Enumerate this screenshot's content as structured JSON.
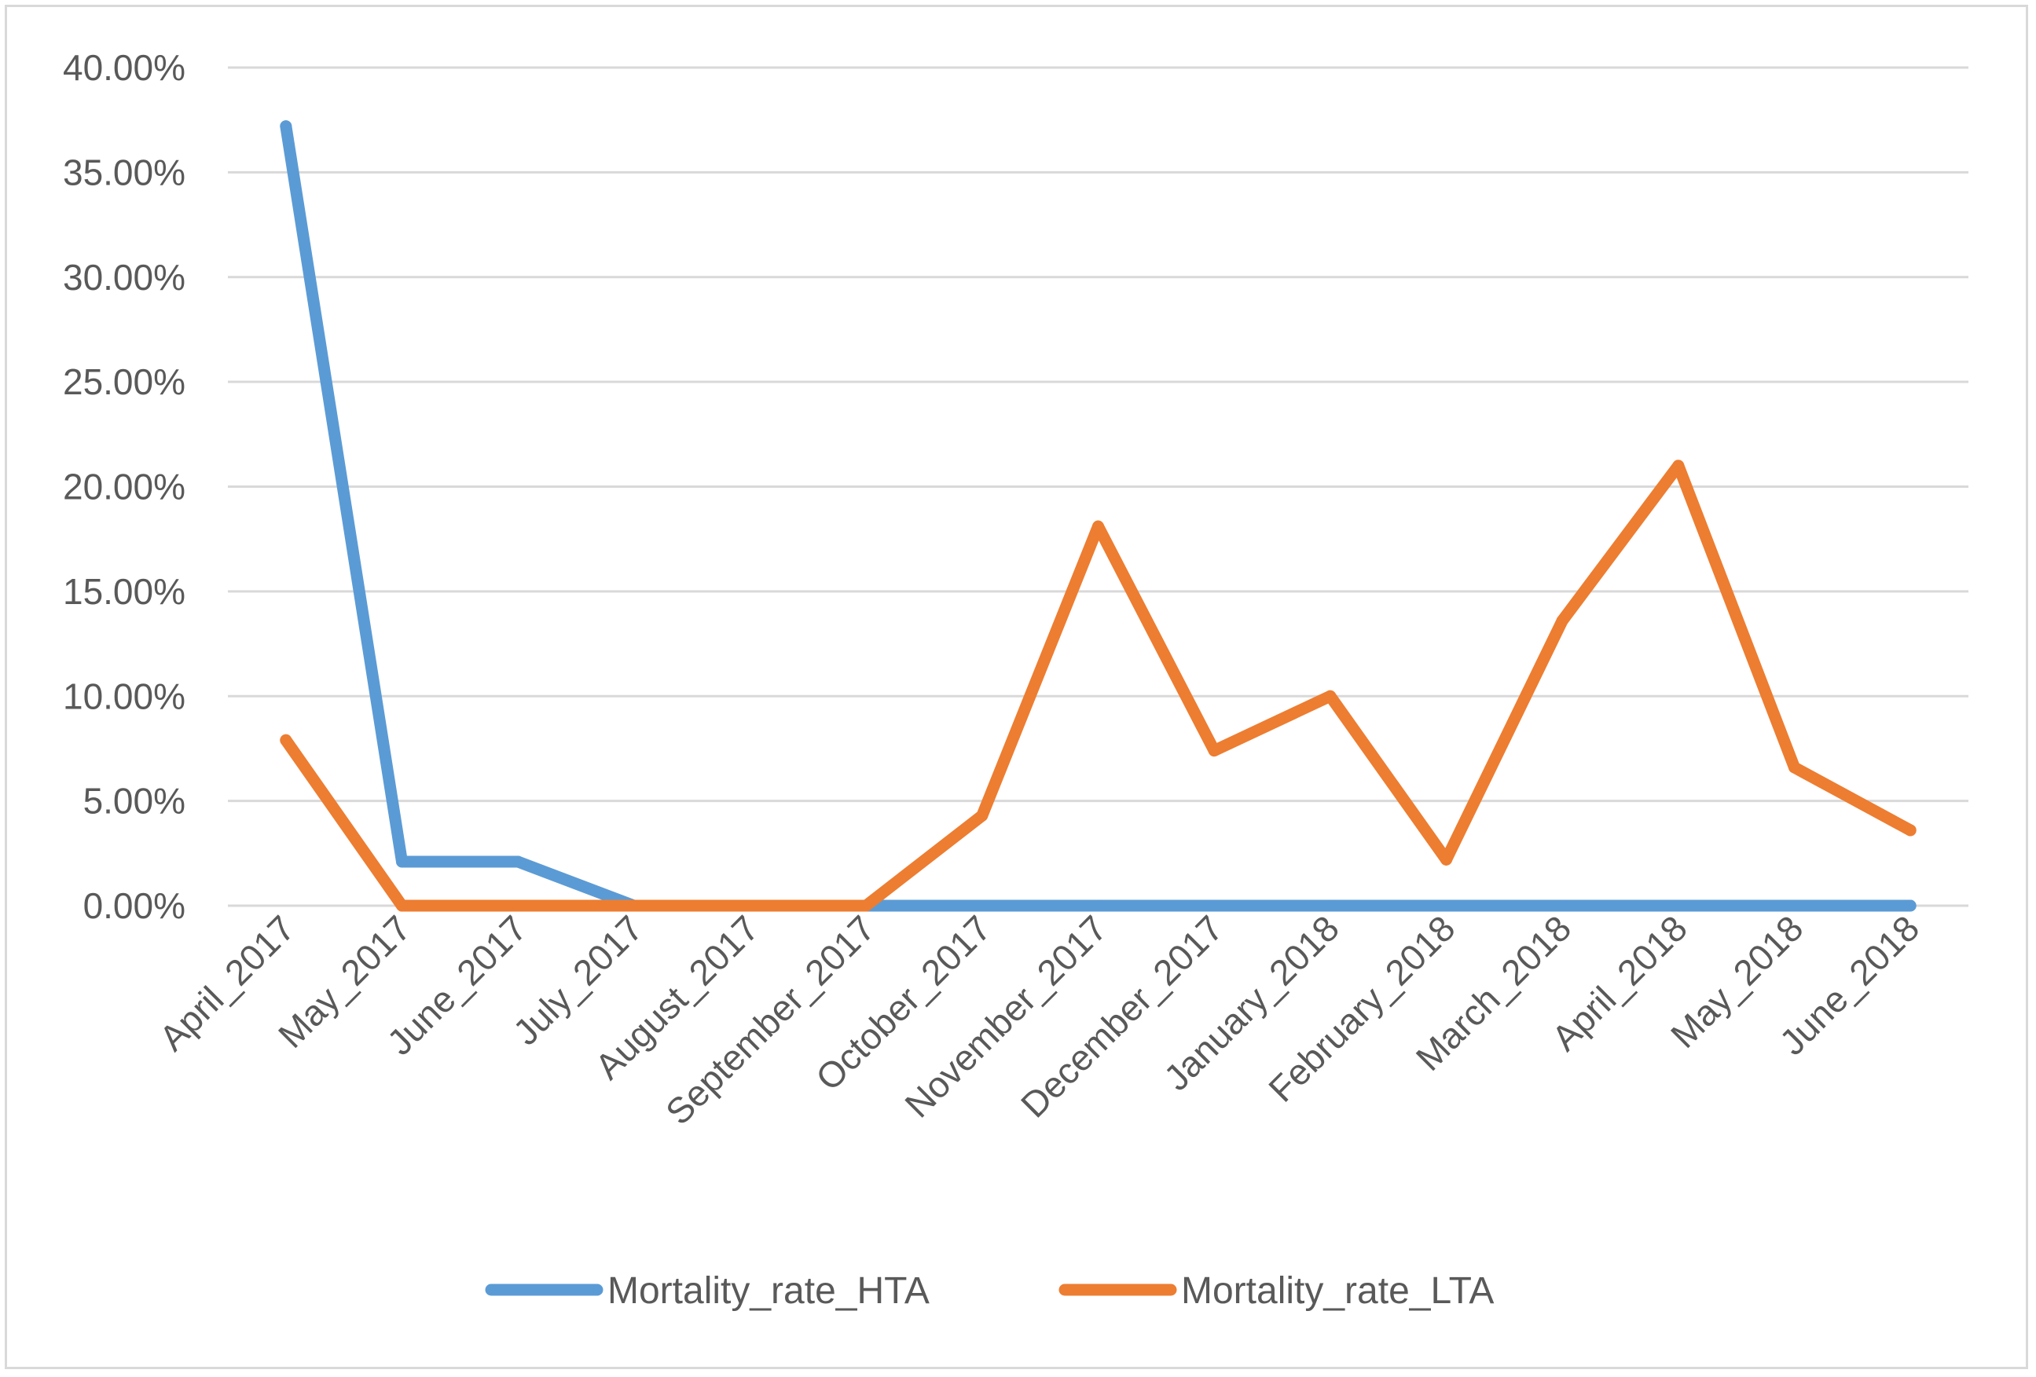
{
  "chart_data": {
    "type": "line",
    "title": "",
    "xlabel": "",
    "ylabel": "",
    "categories": [
      "April_2017",
      "May_2017",
      "June_2017",
      "July_2017",
      "August_2017",
      "September_2017",
      "October_2017",
      "November_2017",
      "December_2017",
      "January_2018",
      "February_2018",
      "March_2018",
      "April_2018",
      "May_2018",
      "June_2018"
    ],
    "ylim": [
      0,
      0.4
    ],
    "y_ticks": [
      {
        "value": 0.4,
        "label": "40.00%"
      },
      {
        "value": 0.35,
        "label": "35.00%"
      },
      {
        "value": 0.3,
        "label": "30.00%"
      },
      {
        "value": 0.25,
        "label": "25.00%"
      },
      {
        "value": 0.2,
        "label": "20.00%"
      },
      {
        "value": 0.15,
        "label": "15.00%"
      },
      {
        "value": 0.1,
        "label": "10.00%"
      },
      {
        "value": 0.05,
        "label": "5.00%"
      },
      {
        "value": 0.0,
        "label": "0.00%"
      }
    ],
    "grid": true,
    "legend_position": "bottom",
    "series": [
      {
        "name": "Mortality_rate_HTA",
        "color": "#5b9bd5",
        "values": [
          0.372,
          0.021,
          0.021,
          0.0,
          0.0,
          0.0,
          0.0,
          0.0,
          0.0,
          0.0,
          0.0,
          0.0,
          0.0,
          0.0,
          0.0
        ]
      },
      {
        "name": "Mortality_rate_LTA",
        "color": "#ed7d31",
        "values": [
          0.079,
          0.0,
          0.0,
          0.0,
          0.0,
          0.0,
          0.043,
          0.181,
          0.074,
          0.1,
          0.022,
          0.136,
          0.21,
          0.066,
          0.036
        ]
      }
    ]
  }
}
